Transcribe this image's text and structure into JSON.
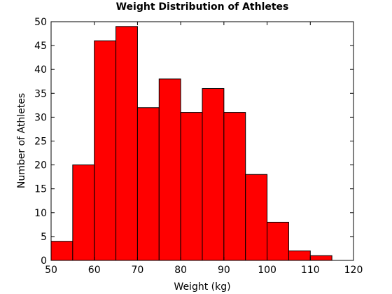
{
  "chart_data": {
    "type": "bar",
    "title": "Weight Distribution of Athletes",
    "xlabel": "Weight (kg)",
    "ylabel": "Number of Athletes",
    "bin_edges": [
      50,
      55,
      60,
      65,
      70,
      75,
      80,
      85,
      90,
      95,
      100,
      105,
      110,
      115
    ],
    "values": [
      4,
      20,
      46,
      49,
      32,
      38,
      31,
      36,
      31,
      18,
      8,
      2,
      1
    ],
    "xlim": [
      50,
      120
    ],
    "ylim": [
      0,
      50
    ],
    "xticks": [
      50,
      60,
      70,
      80,
      90,
      100,
      110,
      120
    ],
    "yticks": [
      0,
      5,
      10,
      15,
      20,
      25,
      30,
      35,
      40,
      45,
      50
    ],
    "grid": false,
    "bar_color": "#ff0000",
    "edge_color": "#000000"
  }
}
